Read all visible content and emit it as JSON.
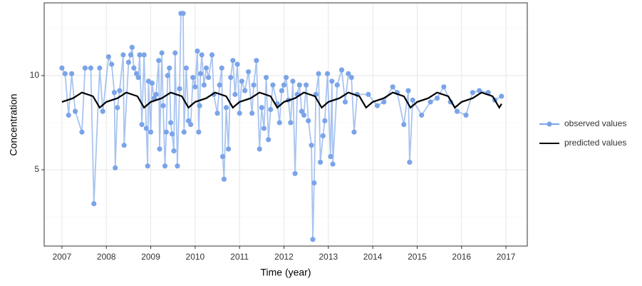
{
  "chart_data": {
    "type": "line",
    "xlabel": "Time (year)",
    "ylabel": "Concentration",
    "xlim": [
      2006.6,
      2017.48
    ],
    "ylim": [
      0.95,
      13.86
    ],
    "xticks": [
      2007,
      2008,
      2009,
      2010,
      2011,
      2012,
      2013,
      2014,
      2015,
      2016,
      2017
    ],
    "yticks": [
      5,
      10
    ],
    "y_minor_ticks": [
      2.5,
      7.5,
      12.5
    ],
    "grid": true,
    "legend": "right",
    "series": [
      {
        "name": "observed values",
        "color": "#7ba4e8",
        "markers": true,
        "x": [
          2007.0,
          2007.07,
          2007.15,
          2007.22,
          2007.3,
          2007.45,
          2007.52,
          2007.65,
          2007.72,
          2007.85,
          2007.92,
          2008.05,
          2008.12,
          2008.18,
          2008.2,
          2008.25,
          2008.3,
          2008.38,
          2008.4,
          2008.5,
          2008.55,
          2008.58,
          2008.62,
          2008.68,
          2008.72,
          2008.75,
          2008.8,
          2008.85,
          2008.9,
          2008.93,
          2008.95,
          2009.0,
          2009.03,
          2009.08,
          2009.12,
          2009.18,
          2009.2,
          2009.25,
          2009.28,
          2009.32,
          2009.35,
          2009.38,
          2009.42,
          2009.45,
          2009.48,
          2009.52,
          2009.55,
          2009.6,
          2009.65,
          2009.68,
          2009.73,
          2009.75,
          2009.8,
          2009.85,
          2009.9,
          2009.95,
          2010.0,
          2010.05,
          2010.08,
          2010.1,
          2010.12,
          2010.15,
          2010.2,
          2010.25,
          2010.3,
          2010.38,
          2010.42,
          2010.5,
          2010.55,
          2010.6,
          2010.62,
          2010.65,
          2010.7,
          2010.75,
          2010.8,
          2010.85,
          2010.9,
          2010.95,
          2011.0,
          2011.05,
          2011.12,
          2011.2,
          2011.28,
          2011.32,
          2011.38,
          2011.45,
          2011.5,
          2011.55,
          2011.6,
          2011.65,
          2011.7,
          2011.75,
          2011.85,
          2011.9,
          2011.95,
          2012.0,
          2012.05,
          2012.1,
          2012.15,
          2012.2,
          2012.25,
          2012.3,
          2012.35,
          2012.4,
          2012.45,
          2012.5,
          2012.55,
          2012.62,
          2012.65,
          2012.68,
          2012.72,
          2012.78,
          2012.82,
          2012.88,
          2012.92,
          2012.98,
          2013.05,
          2013.08,
          2013.1,
          2013.2,
          2013.3,
          2013.38,
          2013.45,
          2013.52,
          2013.58,
          2013.65,
          2013.9,
          2014.1,
          2014.25,
          2014.45,
          2014.55,
          2014.7,
          2014.8,
          2014.83,
          2014.9,
          2015.1,
          2015.3,
          2015.45,
          2015.6,
          2015.75,
          2015.9,
          2016.1,
          2016.25,
          2016.4,
          2016.6,
          2016.75,
          2016.9
        ],
        "values": [
          10.4,
          10.1,
          7.9,
          10.1,
          8.1,
          7.0,
          10.4,
          10.4,
          3.2,
          10.4,
          8.1,
          11.0,
          10.6,
          9.1,
          5.1,
          8.3,
          9.2,
          11.1,
          6.3,
          10.7,
          11.1,
          11.5,
          10.4,
          10.1,
          9.9,
          11.1,
          7.4,
          11.1,
          7.2,
          5.2,
          9.7,
          7.0,
          9.6,
          8.8,
          9.0,
          10.8,
          6.1,
          11.2,
          8.4,
          5.2,
          7.0,
          10.0,
          10.4,
          7.5,
          6.9,
          6.0,
          11.2,
          5.2,
          9.3,
          13.3,
          13.3,
          7.0,
          10.4,
          7.6,
          7.4,
          9.9,
          9.4,
          11.3,
          7.0,
          8.4,
          10.1,
          11.1,
          9.5,
          10.4,
          9.9,
          11.1,
          9.0,
          8.0,
          9.5,
          10.4,
          5.7,
          4.5,
          8.3,
          6.1,
          9.9,
          10.8,
          9.0,
          10.6,
          8.0,
          9.7,
          9.2,
          10.2,
          8.0,
          9.5,
          10.8,
          6.1,
          8.3,
          7.2,
          9.9,
          6.6,
          8.2,
          9.5,
          8.5,
          7.5,
          9.2,
          9.5,
          9.9,
          8.7,
          7.5,
          9.7,
          4.8,
          9.0,
          9.5,
          8.1,
          7.9,
          9.5,
          7.6,
          6.3,
          1.3,
          4.3,
          9.0,
          10.1,
          5.4,
          6.8,
          7.6,
          10.1,
          5.7,
          9.7,
          5.3,
          9.5,
          10.3,
          8.6,
          10.1,
          9.9,
          7.0,
          9.0,
          9.0,
          8.4,
          8.6,
          9.4,
          9.1,
          7.4,
          9.2,
          5.4,
          8.7,
          7.9,
          8.6,
          8.8,
          9.4,
          8.6,
          8.1,
          7.9,
          9.1,
          9.2,
          9.1,
          8.7,
          8.9
        ]
      },
      {
        "name": "predicted values",
        "color": "#000000",
        "markers": false,
        "x": [
          2007.0,
          2007.25,
          2007.45,
          2007.7,
          2007.85,
          2008.0,
          2008.25,
          2008.45,
          2008.7,
          2008.85,
          2009.0,
          2009.25,
          2009.45,
          2009.7,
          2009.85,
          2010.0,
          2010.25,
          2010.45,
          2010.7,
          2010.85,
          2011.0,
          2011.25,
          2011.45,
          2011.7,
          2011.85,
          2012.0,
          2012.25,
          2012.45,
          2012.7,
          2012.85,
          2013.0,
          2013.25,
          2013.45,
          2013.7,
          2013.85,
          2014.0,
          2014.25,
          2014.45,
          2014.7,
          2014.85,
          2015.0,
          2015.25,
          2015.45,
          2015.7,
          2015.85,
          2016.0,
          2016.25,
          2016.45,
          2016.7,
          2016.85,
          2016.9
        ],
        "values": [
          8.6,
          8.8,
          9.1,
          8.9,
          8.3,
          8.6,
          8.8,
          9.1,
          8.9,
          8.3,
          8.6,
          8.8,
          9.1,
          8.9,
          8.3,
          8.6,
          8.8,
          9.1,
          8.9,
          8.3,
          8.6,
          8.8,
          9.1,
          8.9,
          8.3,
          8.6,
          8.8,
          9.1,
          8.9,
          8.3,
          8.6,
          8.8,
          9.1,
          8.9,
          8.3,
          8.6,
          8.8,
          9.1,
          8.9,
          8.3,
          8.6,
          8.8,
          9.1,
          8.9,
          8.3,
          8.6,
          8.8,
          9.1,
          8.9,
          8.3,
          8.5
        ]
      }
    ]
  }
}
